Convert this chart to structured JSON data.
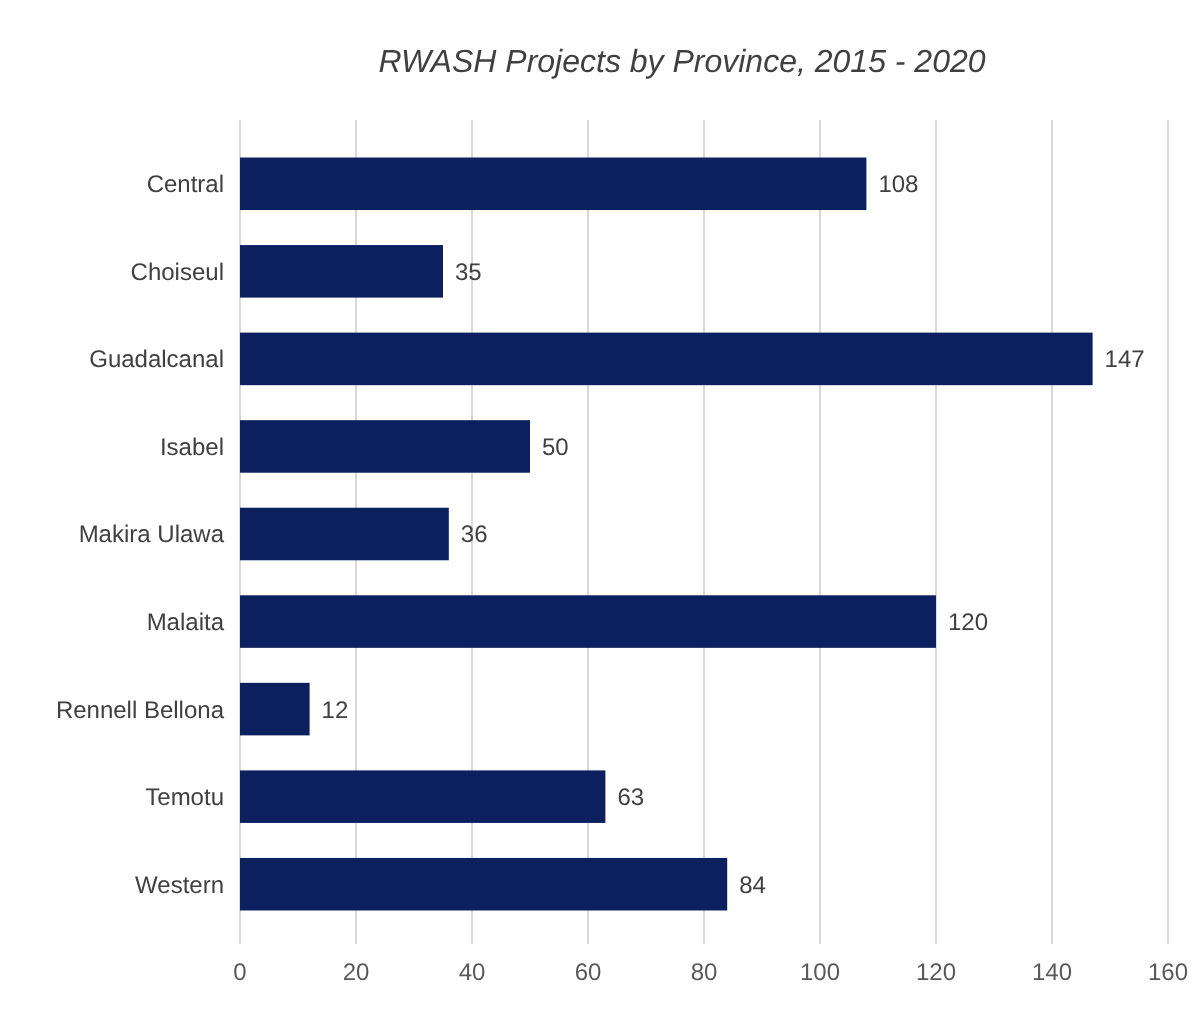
{
  "chart_data": {
    "type": "bar",
    "orientation": "horizontal",
    "title": "RWASH Projects by Province, 2015 - 2020",
    "categories": [
      "Central",
      "Choiseul",
      "Guadalcanal",
      "Isabel",
      "Makira Ulawa",
      "Malaita",
      "Rennell Bellona",
      "Temotu",
      "Western"
    ],
    "values": [
      108,
      35,
      147,
      50,
      36,
      120,
      12,
      63,
      84
    ],
    "color": "#0c1f5e",
    "xlim": [
      0,
      160
    ],
    "xticks": [
      0,
      20,
      40,
      60,
      80,
      100,
      120,
      140,
      160
    ],
    "grid": "x",
    "data_labels": true
  }
}
